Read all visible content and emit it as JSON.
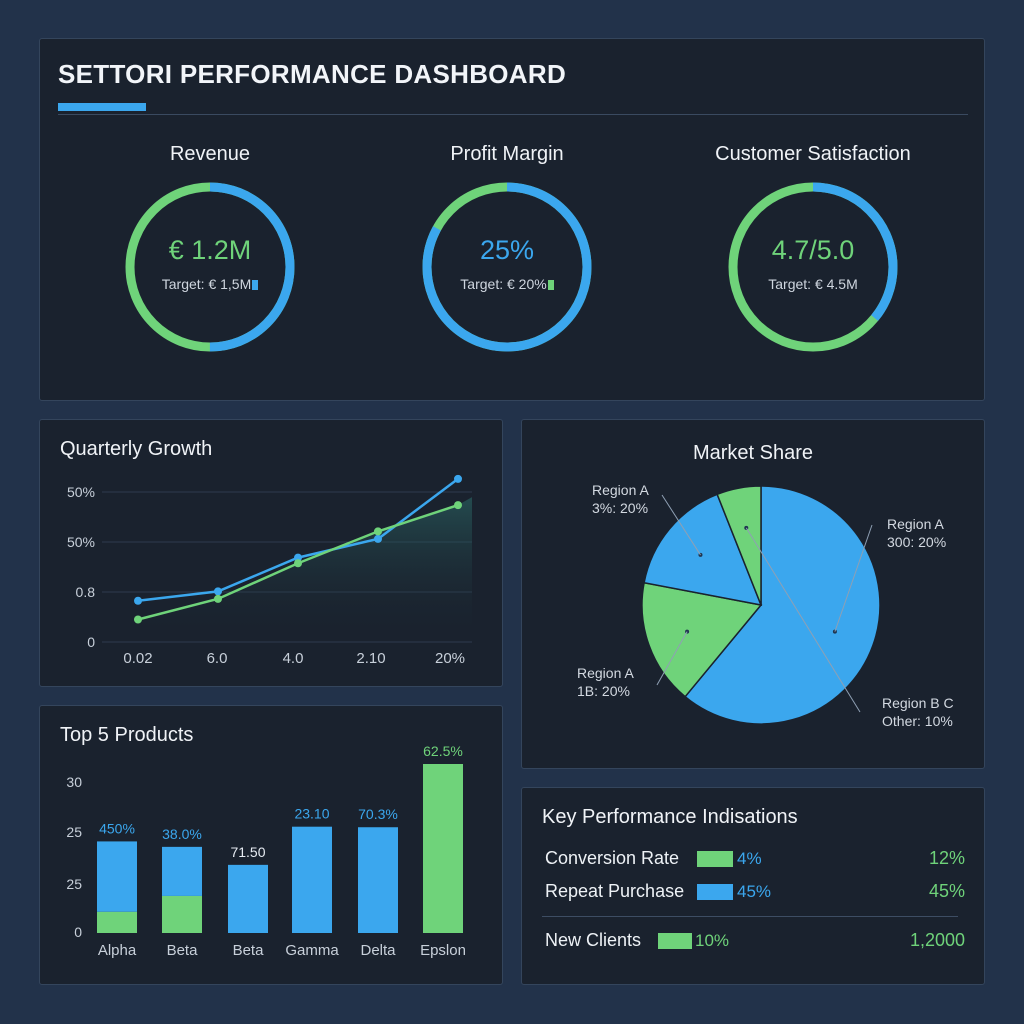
{
  "dashboard": {
    "title": "SETTORI PERFORMANCE DASHBOARD"
  },
  "colors": {
    "blue": "#3ba7ee",
    "green": "#6fd37a",
    "panel": "#1a222e",
    "background": "#22324a"
  },
  "gauges": [
    {
      "label": "Revenue",
      "value": "€ 1.2M",
      "target": "Target: € 1,5M",
      "value_color": "#6fd37a",
      "blue_fraction": 0.5,
      "marker_color": "#3ba7ee"
    },
    {
      "label": "Profit Margin",
      "value": "25%",
      "target": "Target: € 20%",
      "value_color": "#3ba7ee",
      "blue_fraction": 0.83,
      "marker_color": "#6fd37a"
    },
    {
      "label": "Customer Satisfaction",
      "value": "4.7/5.0",
      "target": "Target: € 4.5M",
      "value_color": "#6fd37a",
      "blue_fraction": 0.36,
      "marker_color": ""
    }
  ],
  "chart_data": [
    {
      "type": "line",
      "title": "Quarterly Growth",
      "categories": [
        "0.02",
        "6.0",
        "4.0",
        "2.10",
        "20%"
      ],
      "ytick_labels": [
        "0",
        "0.8",
        "50%",
        "50%"
      ],
      "ylim": [
        0,
        80
      ],
      "series": [
        {
          "name": "",
          "color": "#3ba7ee",
          "values": [
            22,
            27,
            45,
            55,
            87
          ]
        },
        {
          "name": "",
          "color": "#6fd37a",
          "values": [
            12,
            23,
            42,
            59,
            73
          ]
        }
      ],
      "area_fill": true
    },
    {
      "type": "pie",
      "title": "Market Share",
      "slices": [
        {
          "label": "Region A",
          "value_label": "300: 20%",
          "value": 61,
          "color": "#3ba7ee"
        },
        {
          "label": "Region A",
          "value_label": "1B: 20%",
          "value": 17,
          "color": "#6fd37a"
        },
        {
          "label": "Region A",
          "value_label": "3%: 20%",
          "value": 16,
          "color": "#3ba7ee"
        },
        {
          "label": "Region B C",
          "value_label": "Other: 10%",
          "value": 6,
          "color": "#6fd37a"
        }
      ]
    },
    {
      "type": "bar",
      "title": "Top 5 Products",
      "categories": [
        "Alpha",
        "Beta",
        "Beta",
        "Gamma",
        "Delta",
        "Epslon"
      ],
      "ytick_labels": [
        "0",
        "25",
        "25",
        "30"
      ],
      "ylim": [
        0,
        31
      ],
      "series": [
        {
          "name": "",
          "color": "#6fd37a",
          "values": [
            3.9,
            6.8,
            0,
            0,
            0,
            31
          ]
        },
        {
          "name": "",
          "color": "#3ba7ee",
          "values": [
            12.9,
            9.0,
            12.5,
            19.5,
            19.4,
            0
          ]
        }
      ],
      "data_labels": [
        "450%",
        "38.0%",
        "71.50",
        "23.10",
        "70.3%",
        "62.5%"
      ],
      "data_label_colors": [
        "#3ba7ee",
        "#3ba7ee",
        "#e6ebf2",
        "#3ba7ee",
        "#3ba7ee",
        "#6fd37a"
      ]
    }
  ],
  "kpi": {
    "title": "Key Performance Indisations",
    "rows": [
      {
        "name": "Conversion Rate",
        "pct": "4%",
        "value": "12%",
        "swatch": "#6fd37a",
        "pct_color": "#3ba7ee",
        "fill_fraction": 0.04
      },
      {
        "name": "Repeat Purchase",
        "pct": "45%",
        "value": "45%",
        "swatch": "#3ba7ee",
        "pct_color": "#3ba7ee",
        "fill_fraction": 0.45
      },
      {
        "name": "New Clients",
        "pct": "10%",
        "value": "1,2000",
        "swatch": "#6fd37a",
        "pct_color": "#6fd37a",
        "fill_fraction": 0.1
      }
    ]
  }
}
